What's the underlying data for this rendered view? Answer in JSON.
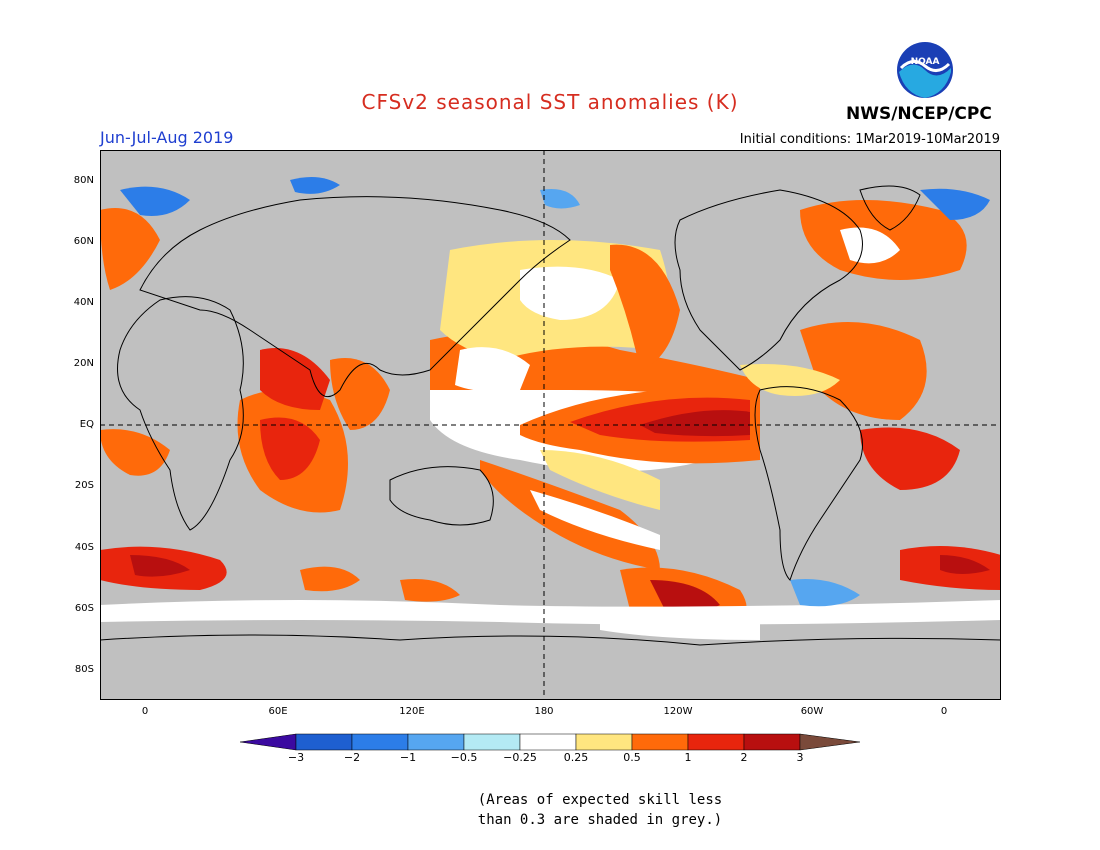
{
  "header": {
    "title": "CFSv2 seasonal SST anomalies (K)",
    "season": "Jun-Jul-Aug 2019",
    "initial_conditions": "Initial conditions: 1Mar2019-10Mar2019",
    "agency": "NWS/NCEP/CPC",
    "logo_text": "NOAA"
  },
  "colors": {
    "title": "#d62d20",
    "season": "#1f3fd0",
    "ocean_grey": "#c0c0c0",
    "land": "#c0c0c0"
  },
  "axes": {
    "lat_labels": [
      "80N",
      "60N",
      "40N",
      "20N",
      "EQ",
      "20S",
      "40S",
      "60S",
      "80S"
    ],
    "lon_labels": [
      "0",
      "60E",
      "120E",
      "180",
      "120W",
      "60W",
      "0"
    ]
  },
  "colorbar": {
    "ticks": [
      "−3",
      "−2",
      "−1",
      "−0.5",
      "−0.25",
      "0.25",
      "0.5",
      "1",
      "2",
      "3"
    ],
    "colors": [
      "#3b0aa0",
      "#1e5fd0",
      "#2c7de8",
      "#56a6f0",
      "#b4eaf4",
      "#ffffff",
      "#ffe680",
      "#ff6a0a",
      "#e8250d",
      "#b80f0f",
      "#7a4a3a"
    ]
  },
  "note": {
    "line1": "(Areas of expected skill less",
    "line2": "than 0.3 are shaded in grey.)"
  }
}
